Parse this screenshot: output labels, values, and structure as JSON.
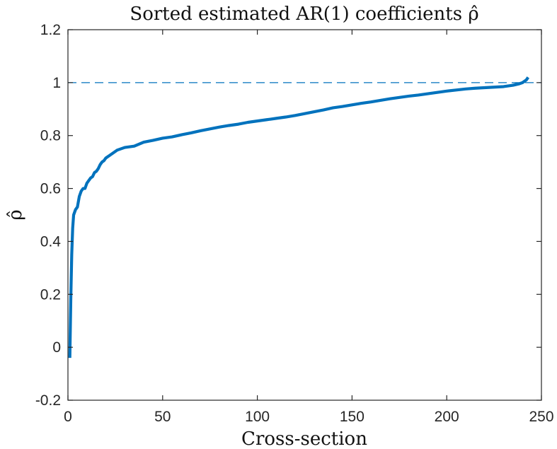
{
  "chart_data": {
    "type": "line",
    "title": "Sorted estimated AR(1) coefficients ρ̂",
    "xlabel": "Cross-section",
    "ylabel": "ρ̂",
    "xlim": [
      0,
      250
    ],
    "ylim": [
      -0.2,
      1.2
    ],
    "xticks": [
      0,
      50,
      100,
      150,
      200,
      250
    ],
    "yticks": [
      -0.2,
      0,
      0.2,
      0.4,
      0.6,
      0.8,
      1,
      1.2
    ],
    "grid": false,
    "legend": "none",
    "reference_line": {
      "y": 1,
      "style": "dashed",
      "color": "#0072BD"
    },
    "series": [
      {
        "color": "#0072BD",
        "x": [
          1,
          1.5,
          2,
          2.5,
          3,
          4,
          5,
          6,
          7,
          8,
          9,
          10,
          11,
          12,
          13,
          14,
          15,
          16,
          17,
          18,
          19,
          20,
          22,
          24,
          26,
          28,
          30,
          35,
          40,
          45,
          50,
          55,
          60,
          65,
          70,
          75,
          80,
          85,
          90,
          95,
          100,
          105,
          110,
          115,
          120,
          125,
          130,
          135,
          140,
          145,
          150,
          155,
          160,
          165,
          170,
          175,
          180,
          185,
          190,
          195,
          200,
          205,
          210,
          215,
          220,
          225,
          230,
          235,
          238,
          240,
          242,
          243
        ],
        "y": [
          -0.04,
          0.18,
          0.35,
          0.45,
          0.5,
          0.52,
          0.53,
          0.57,
          0.59,
          0.6,
          0.6,
          0.62,
          0.63,
          0.64,
          0.645,
          0.66,
          0.665,
          0.675,
          0.69,
          0.7,
          0.705,
          0.715,
          0.725,
          0.735,
          0.745,
          0.75,
          0.755,
          0.76,
          0.775,
          0.782,
          0.79,
          0.795,
          0.803,
          0.81,
          0.818,
          0.825,
          0.832,
          0.838,
          0.843,
          0.85,
          0.855,
          0.86,
          0.865,
          0.87,
          0.876,
          0.883,
          0.89,
          0.897,
          0.905,
          0.91,
          0.916,
          0.922,
          0.927,
          0.933,
          0.939,
          0.944,
          0.949,
          0.953,
          0.958,
          0.963,
          0.968,
          0.972,
          0.976,
          0.979,
          0.981,
          0.983,
          0.985,
          0.99,
          0.995,
          1.0,
          1.01,
          1.02
        ]
      }
    ]
  }
}
